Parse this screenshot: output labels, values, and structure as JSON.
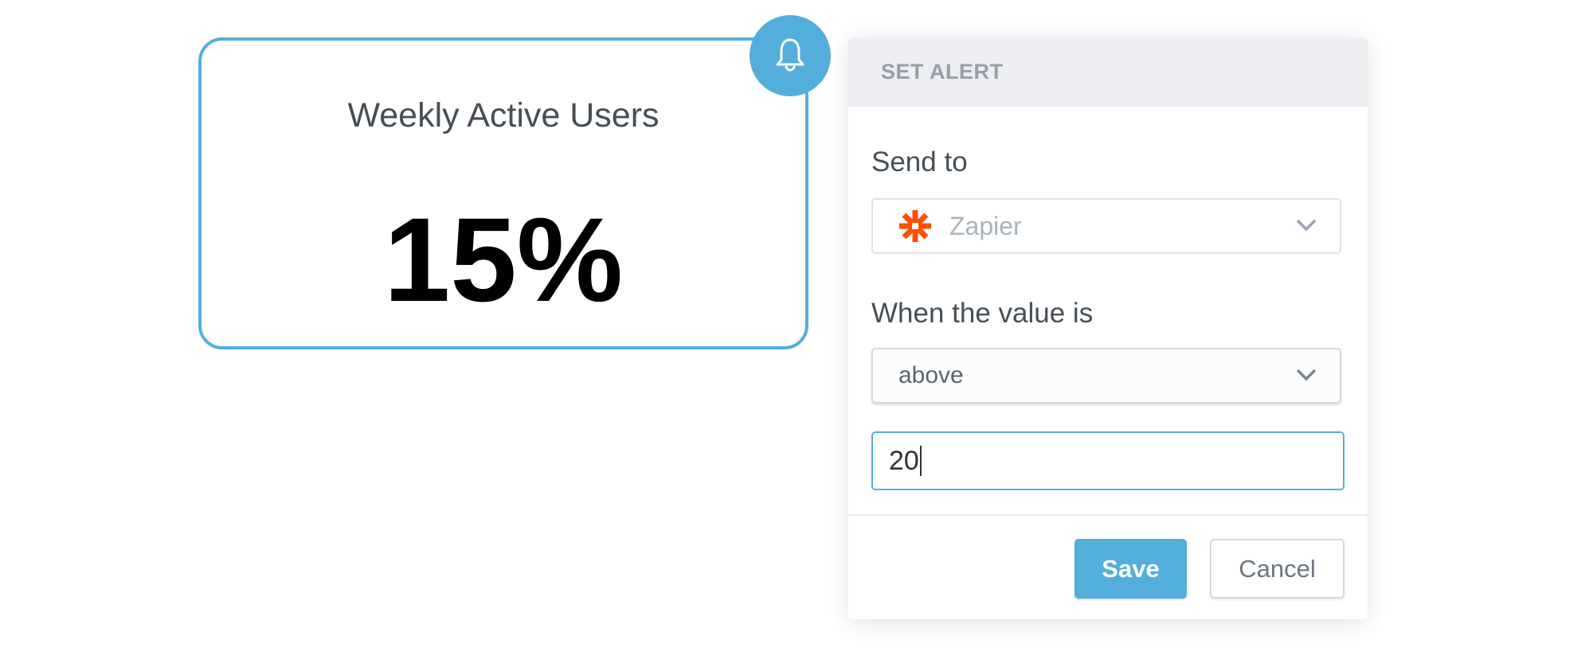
{
  "kpi": {
    "title": "Weekly Active Users",
    "value": "15%"
  },
  "alert": {
    "header": "SET ALERT",
    "send_to_label": "Send to",
    "send_to_value": "Zapier",
    "condition_label": "When the value is",
    "condition_value": "above",
    "threshold_value": "20",
    "save_label": "Save",
    "cancel_label": "Cancel"
  },
  "colors": {
    "accent": "#54aedc",
    "zapier": "#ff4f00"
  },
  "icons": {
    "bell": "bell-icon",
    "zapier": "zapier-logo-icon",
    "chevron": "chevron-down-icon"
  }
}
